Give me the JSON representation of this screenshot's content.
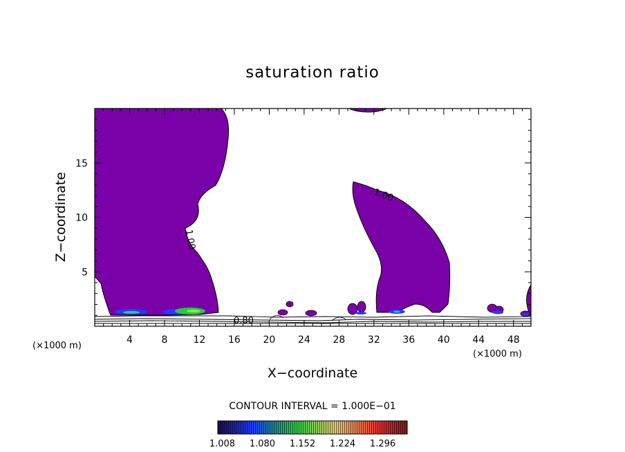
{
  "chart_data": {
    "type": "contour",
    "title": "saturation ratio",
    "xlabel": "X−coordinate",
    "ylabel": "Z−coordinate",
    "x_unit": "(×1000 m)",
    "y_unit": "(×1000 m)",
    "xlim": [
      0,
      50
    ],
    "ylim": [
      0,
      20
    ],
    "x_ticks": [
      "4",
      "8",
      "12",
      "16",
      "20",
      "24",
      "28",
      "32",
      "36",
      "40",
      "44",
      "48"
    ],
    "x_tick_values": [
      4,
      8,
      12,
      16,
      20,
      24,
      28,
      32,
      36,
      40,
      44,
      48
    ],
    "y_ticks": [
      "5",
      "10",
      "15"
    ],
    "y_tick_values": [
      5,
      10,
      15
    ],
    "contour_interval": "CONTOUR INTERVAL = 1.000E−01",
    "contour_labels": [
      "1.00",
      "1.00",
      "0.80"
    ],
    "colorbar": {
      "labels": [
        "1.008",
        "1.080",
        "1.152",
        "1.224",
        "1.296"
      ],
      "min": 1.0,
      "max": 1.34,
      "colors": {
        "low": "#1a0a6e",
        "blue": "#1e3cff",
        "green": "#22cc44",
        "yellow": "#e8d070",
        "red": "#e83030",
        "high": "#8a1a1a"
      }
    },
    "fill_color": "#7a00a8",
    "regions": [
      {
        "name": "left-saturated-column",
        "x_range": [
          0,
          14.5
        ],
        "z_range": [
          0.8,
          20
        ]
      },
      {
        "name": "central-saturated-plume",
        "x_range": [
          29,
          40.5
        ],
        "z_range": [
          0.8,
          13
        ]
      },
      {
        "name": "top-thin-layer",
        "x_range": [
          29.5,
          33
        ],
        "z_range": [
          19.7,
          20
        ]
      }
    ]
  }
}
